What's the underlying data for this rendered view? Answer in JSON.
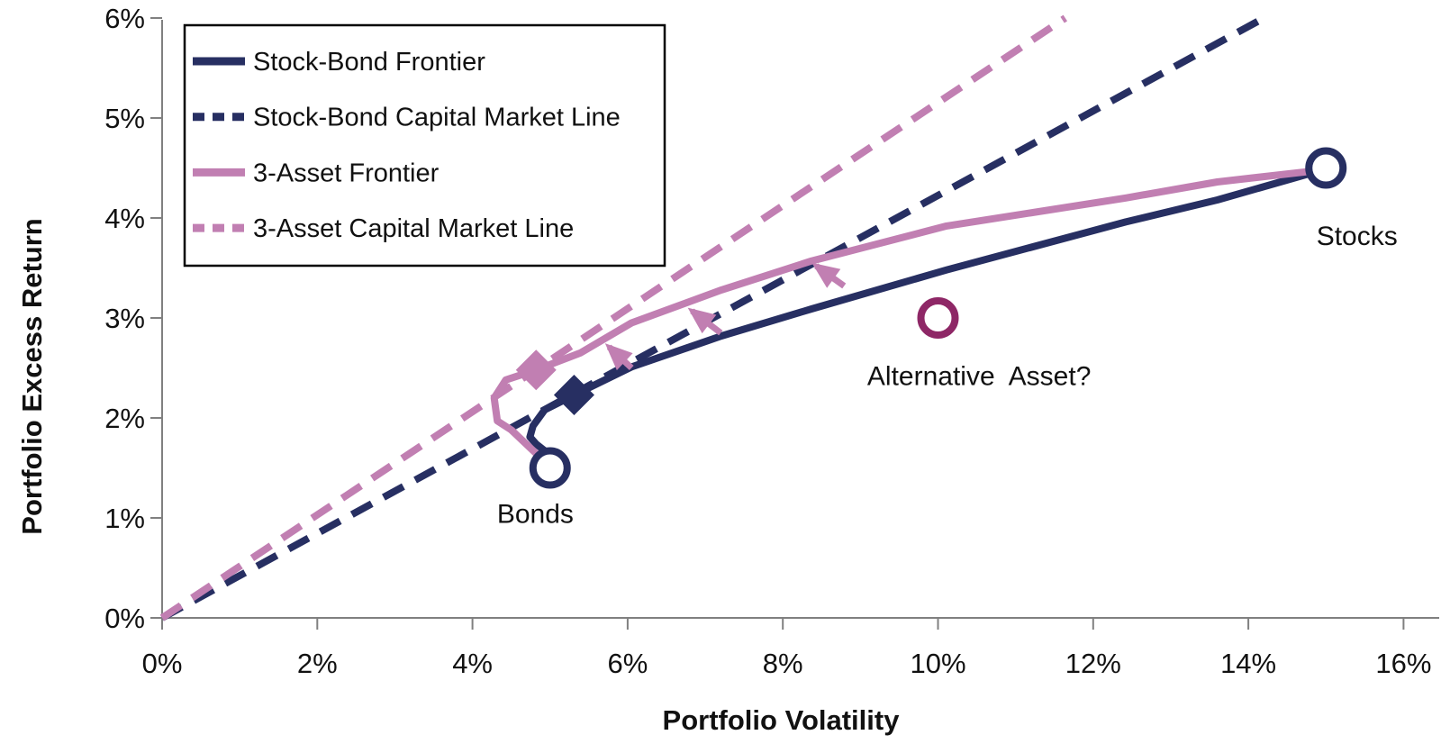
{
  "page": {
    "background": "#FFFFFF"
  },
  "chart_data": {
    "type": "line",
    "title": "",
    "xlabel": "Portfolio Volatility",
    "ylabel": "Portfolio Excess Return",
    "xlim": [
      0,
      16
    ],
    "ylim": [
      0,
      6
    ],
    "grid": false,
    "legend_position": "top-left",
    "colors": {
      "navy": "#272F62",
      "pink": "#C17FB2",
      "maroon": "#8E2766",
      "axis": "#808080",
      "text": "#111111",
      "legend_border": "#000000",
      "background": "#FFFFFF"
    },
    "x_ticks": [
      {
        "value": 0,
        "label": "0%"
      },
      {
        "value": 2,
        "label": "2%"
      },
      {
        "value": 4,
        "label": "4%"
      },
      {
        "value": 6,
        "label": "6%"
      },
      {
        "value": 8,
        "label": "8%"
      },
      {
        "value": 10,
        "label": "10%"
      },
      {
        "value": 12,
        "label": "12%"
      },
      {
        "value": 14,
        "label": "14%"
      },
      {
        "value": 16,
        "label": "16%"
      }
    ],
    "y_ticks": [
      {
        "value": 0,
        "label": "0%"
      },
      {
        "value": 1,
        "label": "1%"
      },
      {
        "value": 2,
        "label": "2%"
      },
      {
        "value": 3,
        "label": "3%"
      },
      {
        "value": 4,
        "label": "4%"
      },
      {
        "value": 5,
        "label": "5%"
      },
      {
        "value": 6,
        "label": "6%"
      }
    ],
    "series": [
      {
        "name": "Stock-Bond Frontier",
        "color_key": "navy",
        "style": "solid",
        "points": [
          [
            5.0,
            1.63
          ],
          [
            4.82,
            1.74
          ],
          [
            4.74,
            1.81
          ],
          [
            4.78,
            1.92
          ],
          [
            4.93,
            2.08
          ],
          [
            5.31,
            2.23
          ],
          [
            6.05,
            2.51
          ],
          [
            7.21,
            2.82
          ],
          [
            8.37,
            3.09
          ],
          [
            10.11,
            3.48
          ],
          [
            12.42,
            3.96
          ],
          [
            13.6,
            4.18
          ],
          [
            14.82,
            4.45
          ]
        ]
      },
      {
        "name": "Stock-Bond Capital Market Line",
        "color_key": "navy",
        "style": "dashed",
        "points": [
          [
            0,
            0
          ],
          [
            14.2,
            6
          ]
        ]
      },
      {
        "name": "3-Asset Frontier",
        "color_key": "pink",
        "style": "solid",
        "points": [
          [
            4.84,
            1.63
          ],
          [
            4.5,
            1.88
          ],
          [
            4.32,
            1.97
          ],
          [
            4.28,
            2.2
          ],
          [
            4.43,
            2.38
          ],
          [
            4.82,
            2.48
          ],
          [
            5.39,
            2.65
          ],
          [
            6.05,
            2.95
          ],
          [
            7.21,
            3.28
          ],
          [
            8.37,
            3.57
          ],
          [
            10.11,
            3.92
          ],
          [
            12.42,
            4.2
          ],
          [
            13.6,
            4.36
          ],
          [
            14.84,
            4.47
          ]
        ]
      },
      {
        "name": "3-Asset Capital Market Line",
        "color_key": "pink",
        "style": "dashed",
        "points": [
          [
            0,
            0
          ],
          [
            11.64,
            6
          ]
        ]
      }
    ],
    "markers": [
      {
        "id": "stocks",
        "label": "Stocks",
        "shape": "circle",
        "color_key": "navy",
        "point": [
          15.0,
          4.5
        ],
        "label_at": [
          15.4,
          3.83
        ]
      },
      {
        "id": "bonds",
        "label": "Bonds",
        "shape": "circle",
        "color_key": "navy",
        "point": [
          5.0,
          1.5
        ],
        "label_at": [
          4.81,
          1.05
        ]
      },
      {
        "id": "alternative-asset",
        "label": "Alternative  Asset?",
        "shape": "circle",
        "color_key": "maroon",
        "point": [
          10.0,
          3.0
        ],
        "label_at": [
          10.53,
          2.43
        ]
      },
      {
        "id": "stock-bond-tangency",
        "label": "",
        "shape": "diamond",
        "color_key": "navy",
        "point": [
          5.31,
          2.23
        ]
      },
      {
        "id": "three-asset-tangency",
        "label": "",
        "shape": "diamond",
        "color_key": "pink",
        "point": [
          4.82,
          2.48
        ]
      }
    ],
    "arrows": [
      {
        "from": [
          6.05,
          2.5
        ],
        "to": [
          5.76,
          2.71
        ]
      },
      {
        "from": [
          7.2,
          2.85
        ],
        "to": [
          6.83,
          3.07
        ]
      },
      {
        "from": [
          8.79,
          3.32
        ],
        "to": [
          8.43,
          3.52
        ]
      }
    ],
    "legend": {
      "items": [
        {
          "label": "Stock-Bond Frontier",
          "color_key": "navy",
          "style": "solid"
        },
        {
          "label": "Stock-Bond Capital Market Line",
          "color_key": "navy",
          "style": "dashed"
        },
        {
          "label": "3-Asset Frontier",
          "color_key": "pink",
          "style": "solid"
        },
        {
          "label": "3-Asset Capital Market Line",
          "color_key": "pink",
          "style": "dashed"
        }
      ]
    }
  }
}
